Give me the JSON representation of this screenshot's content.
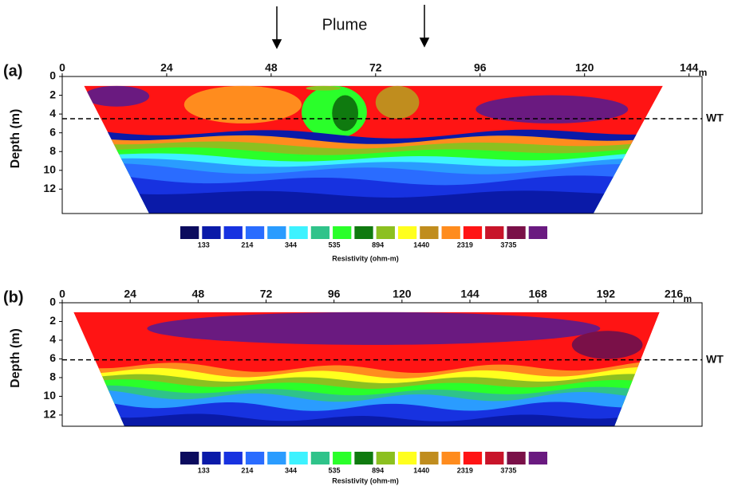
{
  "annotation": "Plume",
  "chart_data": [
    {
      "type": "contour",
      "panel_label": "(a)",
      "y_label": "Depth (m)",
      "x_unit": "m",
      "xlim": [
        0,
        147
      ],
      "xticks": [
        0,
        24,
        48,
        72,
        96,
        120,
        144
      ],
      "ylim": [
        14.6,
        0
      ],
      "yticks": [
        0,
        2,
        4,
        6,
        8,
        10,
        12
      ],
      "water_table_label": "WT",
      "water_table_depth": 4.5,
      "colorbar": {
        "title": "Resistivity (ohm-m)",
        "colors": [
          "#0b0b5e",
          "#0a1aa8",
          "#1732e0",
          "#2a6cff",
          "#2a9cff",
          "#3df2ff",
          "#2fc38a",
          "#2aff2a",
          "#0f7a0f",
          "#8cc020",
          "#ffff1e",
          "#c08d1e",
          "#ff8c1e",
          "#ff1414",
          "#c8142a",
          "#7a1048",
          "#6a1a80"
        ],
        "ticks": [
          133,
          214,
          344,
          535,
          894,
          1440,
          2319,
          3735
        ]
      }
    },
    {
      "type": "contour",
      "panel_label": "(b)",
      "y_label": "Depth (m)",
      "x_unit": "m",
      "xlim": [
        0,
        226
      ],
      "xticks": [
        0,
        24,
        48,
        72,
        96,
        120,
        144,
        168,
        192,
        216
      ],
      "ylim": [
        13.2,
        0
      ],
      "yticks": [
        0,
        2,
        4,
        6,
        8,
        10,
        12
      ],
      "water_table_label": "WT",
      "water_table_depth": 6.1,
      "colorbar": {
        "title": "Resistivity (ohm-m)",
        "colors": [
          "#0b0b5e",
          "#0a1aa8",
          "#1732e0",
          "#2a6cff",
          "#2a9cff",
          "#3df2ff",
          "#2fc38a",
          "#2aff2a",
          "#0f7a0f",
          "#8cc020",
          "#ffff1e",
          "#c08d1e",
          "#ff8c1e",
          "#ff1414",
          "#c8142a",
          "#7a1048",
          "#6a1a80"
        ],
        "ticks": [
          133,
          214,
          344,
          535,
          894,
          1440,
          2319,
          3735
        ]
      }
    }
  ]
}
